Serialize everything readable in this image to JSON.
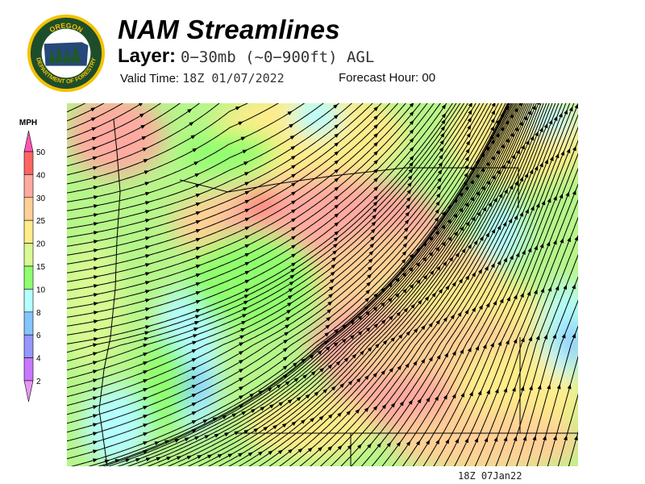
{
  "logo": {
    "text_top": "OREGON",
    "text_bottom": "DEPARTMENT OF FORESTRY"
  },
  "header": {
    "title": "NAM Streamlines",
    "layer_label": "Layer:",
    "layer_value": "0−30mb (~0−900ft) AGL",
    "valid_label": "Valid Time:",
    "valid_value": "18Z 01/07/2022",
    "forecast_label": "Forecast Hour:",
    "forecast_value": "00"
  },
  "colorbar": {
    "unit": "MPH",
    "labels": [
      "50",
      "40",
      "30",
      "25",
      "20",
      "15",
      "10",
      "8",
      "6",
      "4",
      "2"
    ],
    "colors": {
      "above": "#ff55b0",
      "bands": [
        "#ff6464",
        "#ffaaa0",
        "#ffd096",
        "#ffec8a",
        "#d8fa92",
        "#90ff6e",
        "#b4ffff",
        "#84c4ff",
        "#9696ff",
        "#c878ff"
      ],
      "below": "#e898f4"
    }
  },
  "footer": {
    "timestamp": "18Z 07Jan22"
  }
}
